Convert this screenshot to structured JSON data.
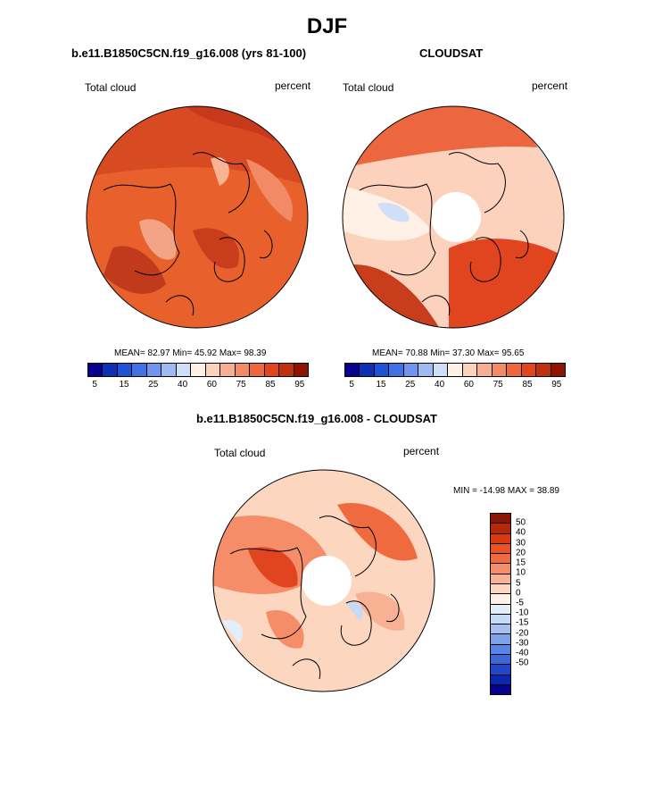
{
  "title": "DJF",
  "panels": {
    "model": {
      "subtitle": "b.e11.B1850C5CN.f19_g16.008 (yrs 81-100)",
      "left_label": "Total cloud",
      "right_label": "percent",
      "stats": "MEAN=  82.97  Min=  45.92  Max=  98.39"
    },
    "obs": {
      "subtitle": "CLOUDSAT",
      "left_label": "Total cloud",
      "right_label": "percent",
      "stats": "MEAN=  70.88  Min=  37.30  Max=  95.65"
    },
    "diff": {
      "subtitle": "b.e11.B1850C5CN.f19_g16.008 - CLOUDSAT",
      "left_label": "Total cloud",
      "right_label": "percent",
      "stats": "MIN = -14.98 MAX =  38.89"
    }
  },
  "colorbar_abs": {
    "colors": [
      "#08008f",
      "#0c2fb3",
      "#1f53d6",
      "#3f72e3",
      "#6e96ee",
      "#9fbaf3",
      "#cfdff8",
      "#fff1e6",
      "#fcd2bd",
      "#f8ae92",
      "#f38a66",
      "#ec6640",
      "#e04520",
      "#c22e10",
      "#8e1400"
    ],
    "ticks": [
      "5",
      "15",
      "25",
      "40",
      "60",
      "75",
      "85",
      "95"
    ]
  },
  "colorbar_diff": {
    "colors": [
      "#8e1400",
      "#b62808",
      "#d63a10",
      "#ea5224",
      "#f06a40",
      "#f58d68",
      "#f9b193",
      "#fdd6c0",
      "#fff1e6",
      "#e3eefb",
      "#c5daf6",
      "#a4c0f0",
      "#7ea2ea",
      "#5a84e3",
      "#3b67d9",
      "#2147c9",
      "#0b27ad",
      "#08008f"
    ],
    "ticks": [
      "50",
      "40",
      "30",
      "20",
      "15",
      "10",
      "5",
      "0",
      "-5",
      "-10",
      "-15",
      "-20",
      "-30",
      "-40",
      "-50"
    ]
  }
}
